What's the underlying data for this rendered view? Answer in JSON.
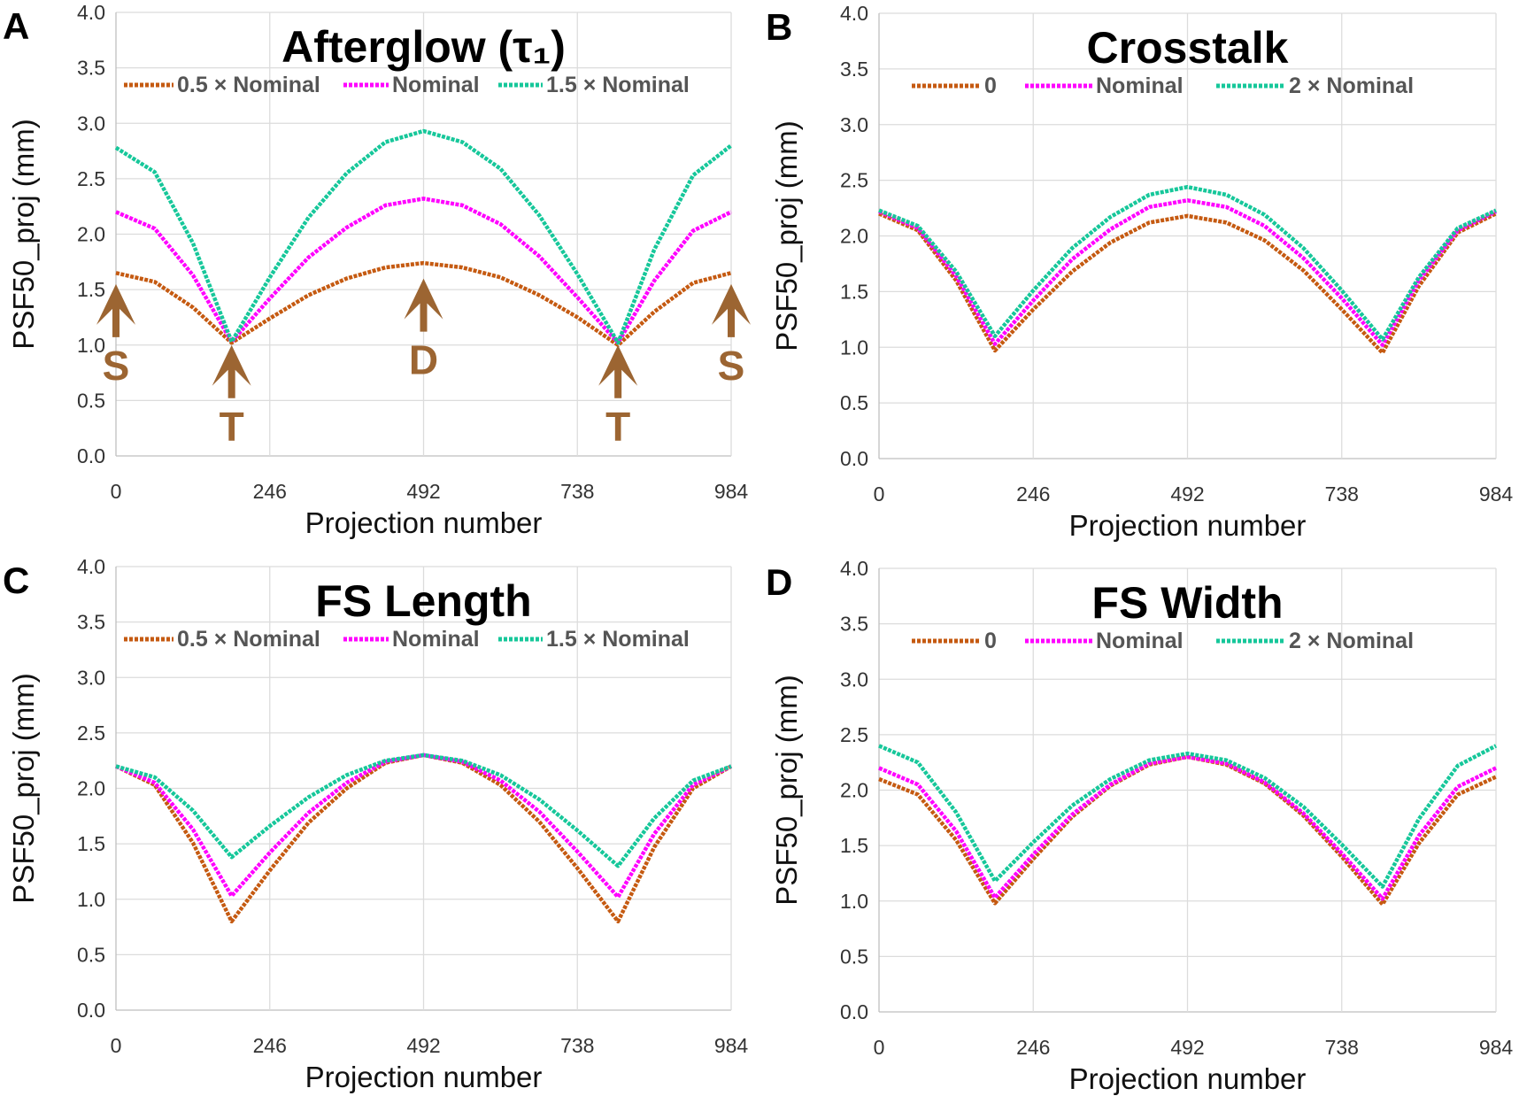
{
  "chart_data": [
    {
      "panel_letter": "A",
      "type": "line",
      "title": "Afterglow (τ₁)",
      "xlabel": "Projection number",
      "ylabel": "PSF50_proj (mm)",
      "xlim": [
        0,
        984
      ],
      "ylim": [
        0,
        4
      ],
      "x_ticks": [
        "0",
        "246",
        "492",
        "738",
        "984"
      ],
      "y_ticks": [
        "0.0",
        "0.5",
        "1.0",
        "1.5",
        "2.0",
        "2.5",
        "3.0",
        "3.5",
        "4.0"
      ],
      "grid": true,
      "legend_position": "top",
      "x": [
        0,
        62,
        123,
        185,
        246,
        308,
        369,
        431,
        492,
        554,
        615,
        677,
        738,
        803,
        861,
        923,
        984
      ],
      "series": [
        {
          "name": "0.5 × Nominal",
          "color": "#c55a11",
          "values": [
            1.65,
            1.57,
            1.34,
            1.02,
            1.24,
            1.45,
            1.6,
            1.7,
            1.74,
            1.7,
            1.61,
            1.45,
            1.25,
            1.0,
            1.3,
            1.56,
            1.65
          ]
        },
        {
          "name": "Nominal",
          "color": "#ff00ff",
          "values": [
            2.2,
            2.05,
            1.63,
            1.03,
            1.42,
            1.79,
            2.06,
            2.26,
            2.32,
            2.26,
            2.09,
            1.8,
            1.43,
            1.02,
            1.58,
            2.03,
            2.2
          ]
        },
        {
          "name": "1.5 × Nominal",
          "color": "#16c79a",
          "values": [
            2.78,
            2.56,
            1.92,
            1.03,
            1.61,
            2.15,
            2.55,
            2.83,
            2.93,
            2.83,
            2.59,
            2.17,
            1.64,
            1.02,
            1.86,
            2.53,
            2.8
          ]
        }
      ],
      "annotations": [
        {
          "label": "S",
          "x": 0,
          "y": 1.55,
          "color": "#9c6532"
        },
        {
          "label": "T",
          "x": 185,
          "y": 1.0,
          "color": "#9c6532"
        },
        {
          "label": "D",
          "x": 492,
          "y": 1.6,
          "color": "#9c6532"
        },
        {
          "label": "T",
          "x": 803,
          "y": 1.0,
          "color": "#9c6532"
        },
        {
          "label": "S",
          "x": 984,
          "y": 1.55,
          "color": "#9c6532"
        }
      ]
    },
    {
      "panel_letter": "B",
      "type": "line",
      "title": "Crosstalk",
      "xlabel": "Projection number",
      "ylabel": "PSF50_proj (mm)",
      "xlim": [
        0,
        984
      ],
      "ylim": [
        0,
        4
      ],
      "x_ticks": [
        "0",
        "246",
        "492",
        "738",
        "984"
      ],
      "y_ticks": [
        "0.0",
        "0.5",
        "1.0",
        "1.5",
        "2.0",
        "2.5",
        "3.0",
        "3.5",
        "4.0"
      ],
      "grid": true,
      "legend_position": "top",
      "x": [
        0,
        62,
        123,
        185,
        246,
        308,
        369,
        431,
        492,
        554,
        615,
        677,
        738,
        803,
        861,
        923,
        984
      ],
      "series": [
        {
          "name": "0",
          "color": "#c55a11",
          "values": [
            2.2,
            2.05,
            1.6,
            0.97,
            1.34,
            1.68,
            1.94,
            2.12,
            2.18,
            2.12,
            1.96,
            1.69,
            1.34,
            0.95,
            1.55,
            2.03,
            2.2
          ]
        },
        {
          "name": "Nominal",
          "color": "#ff00ff",
          "values": [
            2.22,
            2.07,
            1.64,
            1.03,
            1.42,
            1.79,
            2.06,
            2.26,
            2.32,
            2.26,
            2.09,
            1.8,
            1.44,
            1.02,
            1.6,
            2.05,
            2.22
          ]
        },
        {
          "name": "2 × Nominal",
          "color": "#16c79a",
          "values": [
            2.23,
            2.09,
            1.68,
            1.1,
            1.51,
            1.89,
            2.17,
            2.37,
            2.44,
            2.37,
            2.19,
            1.89,
            1.51,
            1.07,
            1.63,
            2.07,
            2.23
          ]
        }
      ]
    },
    {
      "panel_letter": "C",
      "type": "line",
      "title": "FS Length",
      "xlabel": "Projection number",
      "ylabel": "PSF50_proj (mm)",
      "xlim": [
        0,
        984
      ],
      "ylim": [
        0,
        4
      ],
      "x_ticks": [
        "0",
        "246",
        "492",
        "738",
        "984"
      ],
      "y_ticks": [
        "0.0",
        "0.5",
        "1.0",
        "1.5",
        "2.0",
        "2.5",
        "3.0",
        "3.5",
        "4.0"
      ],
      "grid": true,
      "legend_position": "top",
      "x": [
        0,
        62,
        123,
        185,
        246,
        308,
        369,
        431,
        492,
        554,
        615,
        677,
        738,
        803,
        861,
        923,
        984
      ],
      "series": [
        {
          "name": "0.5 × Nominal",
          "color": "#c55a11",
          "values": [
            2.2,
            2.03,
            1.51,
            0.8,
            1.26,
            1.69,
            2.0,
            2.23,
            2.3,
            2.23,
            2.03,
            1.7,
            1.28,
            0.8,
            1.47,
            2.0,
            2.2
          ]
        },
        {
          "name": "Nominal",
          "color": "#ff00ff",
          "values": [
            2.2,
            2.05,
            1.63,
            1.03,
            1.42,
            1.78,
            2.05,
            2.24,
            2.3,
            2.24,
            2.07,
            1.79,
            1.43,
            1.02,
            1.59,
            2.03,
            2.2
          ]
        },
        {
          "name": "1.5 × Nominal",
          "color": "#16c79a",
          "values": [
            2.2,
            2.1,
            1.8,
            1.38,
            1.66,
            1.92,
            2.12,
            2.25,
            2.3,
            2.25,
            2.12,
            1.9,
            1.62,
            1.3,
            1.73,
            2.07,
            2.2
          ]
        }
      ]
    },
    {
      "panel_letter": "D",
      "type": "line",
      "title": "FS Width",
      "xlabel": "Projection number",
      "ylabel": "PSF50_proj (mm)",
      "xlim": [
        0,
        984
      ],
      "ylim": [
        0,
        4
      ],
      "x_ticks": [
        "0",
        "246",
        "492",
        "738",
        "984"
      ],
      "y_ticks": [
        "0.0",
        "0.5",
        "1.0",
        "1.5",
        "2.0",
        "2.5",
        "3.0",
        "3.5",
        "4.0"
      ],
      "grid": true,
      "legend_position": "top",
      "x": [
        0,
        62,
        123,
        185,
        246,
        308,
        369,
        431,
        492,
        554,
        615,
        677,
        738,
        803,
        861,
        923,
        984
      ],
      "series": [
        {
          "name": "0",
          "color": "#c55a11",
          "values": [
            2.1,
            1.96,
            1.55,
            0.98,
            1.38,
            1.76,
            2.04,
            2.23,
            2.3,
            2.23,
            2.06,
            1.77,
            1.4,
            0.97,
            1.52,
            1.96,
            2.12
          ]
        },
        {
          "name": "Nominal",
          "color": "#ff00ff",
          "values": [
            2.2,
            2.05,
            1.63,
            1.03,
            1.42,
            1.78,
            2.05,
            2.24,
            2.3,
            2.24,
            2.07,
            1.79,
            1.43,
            1.02,
            1.59,
            2.03,
            2.2
          ]
        },
        {
          "name": "2 × Nominal",
          "color": "#16c79a",
          "values": [
            2.4,
            2.25,
            1.8,
            1.18,
            1.53,
            1.86,
            2.1,
            2.27,
            2.33,
            2.27,
            2.11,
            1.85,
            1.51,
            1.13,
            1.74,
            2.22,
            2.4
          ]
        }
      ]
    }
  ]
}
